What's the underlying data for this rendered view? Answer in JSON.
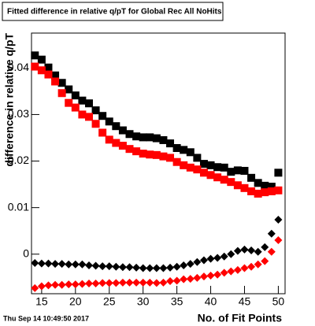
{
  "chart_data": {
    "type": "scatter",
    "title": "Fitted difference in relative q/pT for Global Rec All NoHits",
    "x_label": "No. of Fit Points",
    "y_label": "difference in relative q/pT",
    "timestamp": "Thu Sep 14 10:49:50 2017",
    "x": [
      14,
      15,
      16,
      17,
      18,
      19,
      20,
      21,
      22,
      23,
      24,
      25,
      26,
      27,
      28,
      29,
      30,
      31,
      32,
      33,
      34,
      35,
      36,
      37,
      38,
      39,
      40,
      41,
      42,
      43,
      44,
      45,
      46,
      47,
      48,
      49,
      50
    ],
    "series": [
      {
        "color": "#000000",
        "marker": "square",
        "values": [
          0.0427,
          0.0418,
          0.0401,
          0.0384,
          0.0368,
          0.0354,
          0.0341,
          0.033,
          0.0324,
          0.0309,
          0.0297,
          0.0285,
          0.0275,
          0.0266,
          0.0258,
          0.0253,
          0.0251,
          0.0251,
          0.0249,
          0.0245,
          0.0238,
          0.0228,
          0.0224,
          0.0219,
          0.0207,
          0.0194,
          0.0191,
          0.0187,
          0.0186,
          0.0177,
          0.018,
          0.0179,
          0.0164,
          0.0153,
          0.0147,
          0.0145,
          0.0175
        ]
      },
      {
        "color": "#ff0000",
        "marker": "square",
        "values": [
          0.0403,
          0.0395,
          0.0386,
          0.0371,
          0.0346,
          0.0325,
          0.0315,
          0.03,
          0.0295,
          0.028,
          0.0261,
          0.0246,
          0.0239,
          0.0233,
          0.0226,
          0.0221,
          0.0216,
          0.0214,
          0.0213,
          0.021,
          0.0207,
          0.0198,
          0.0191,
          0.0186,
          0.0182,
          0.0175,
          0.017,
          0.0165,
          0.016,
          0.0155,
          0.0148,
          0.0142,
          0.0135,
          0.013,
          0.0133,
          0.0135,
          0.0137
        ]
      },
      {
        "color": "#000000",
        "marker": "diamond",
        "values": [
          -0.0019,
          -0.002,
          -0.002,
          -0.0021,
          -0.0021,
          -0.0022,
          -0.0022,
          -0.0022,
          -0.0024,
          -0.0025,
          -0.0026,
          -0.0026,
          -0.0027,
          -0.0028,
          -0.0028,
          -0.0029,
          -0.003,
          -0.003,
          -0.003,
          -0.003,
          -0.0029,
          -0.0027,
          -0.0024,
          -0.0021,
          -0.0017,
          -0.0013,
          -0.001,
          -0.0008,
          -0.0005,
          0.0,
          0.0007,
          0.001,
          0.0008,
          0.0005,
          0.0015,
          0.0044,
          0.0074
        ]
      },
      {
        "color": "#ff0000",
        "marker": "diamond",
        "values": [
          -0.0073,
          -0.0069,
          -0.0067,
          -0.0066,
          -0.0066,
          -0.0065,
          -0.0065,
          -0.0064,
          -0.0063,
          -0.0063,
          -0.0062,
          -0.0062,
          -0.0062,
          -0.0061,
          -0.0061,
          -0.0061,
          -0.0061,
          -0.0061,
          -0.0062,
          -0.0061,
          -0.0058,
          -0.0057,
          -0.0054,
          -0.0053,
          -0.0051,
          -0.0048,
          -0.0046,
          -0.0044,
          -0.004,
          -0.0037,
          -0.0034,
          -0.003,
          -0.0027,
          -0.0022,
          -0.0015,
          0.0005,
          0.003
        ]
      }
    ],
    "xlim": [
      13.5,
      51
    ],
    "xticks": [
      15,
      20,
      25,
      30,
      35,
      40,
      45,
      50
    ],
    "ylim": [
      -0.0085,
      0.0475
    ],
    "yticks": [
      0,
      0.01,
      0.02,
      0.03,
      0.04
    ],
    "grid": false
  }
}
